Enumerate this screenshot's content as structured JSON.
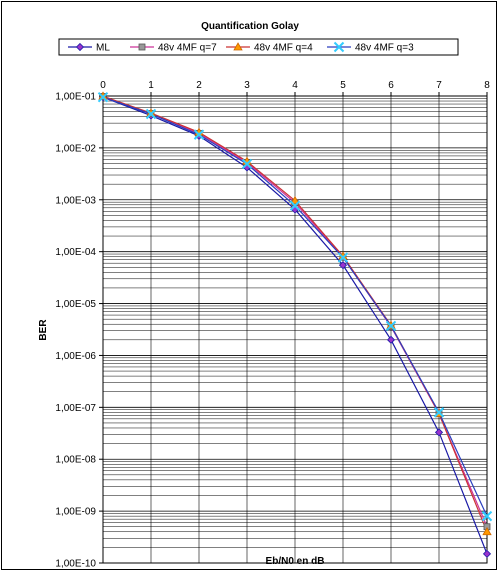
{
  "chart_data": {
    "type": "line",
    "title": "Quantification Golay",
    "xlabel": "Eb/N0 en dB",
    "ylabel": "BER",
    "x": [
      0,
      1,
      2,
      3,
      4,
      5,
      6,
      7,
      8
    ],
    "x_tick_labels": [
      "0",
      "1",
      "2",
      "3",
      "4",
      "5",
      "6",
      "7",
      "8"
    ],
    "xlim": [
      0,
      8
    ],
    "y_scale": "log",
    "ylim": [
      1e-10,
      0.1
    ],
    "y_tick_values": [
      0.1,
      0.01,
      0.001,
      0.0001,
      1e-05,
      1e-06,
      1e-07,
      1e-08,
      1e-09,
      1e-10
    ],
    "y_tick_labels": [
      "1,00E-01",
      "1,00E-02",
      "1,00E-03",
      "1,00E-04",
      "1,00E-05",
      "1,00E-06",
      "1,00E-07",
      "1,00E-08",
      "1,00E-09",
      "1,00E-10"
    ],
    "x_axis_position": "top",
    "grid": true,
    "legend_position": "top",
    "series": [
      {
        "name": "ML",
        "color": "#1a1aa6",
        "marker": "diamond",
        "marker_color": "#9933cc",
        "values": [
          0.095,
          0.042,
          0.017,
          0.0042,
          0.00065,
          5.5e-05,
          2e-06,
          3.3e-08,
          1.5e-10
        ]
      },
      {
        "name": "48v 4MF q=7",
        "color": "#cc3399",
        "marker": "square",
        "marker_color": "#999999",
        "values": [
          0.098,
          0.046,
          0.019,
          0.0052,
          0.00088,
          7.8e-05,
          3.6e-06,
          7.5e-08,
          5e-10
        ]
      },
      {
        "name": "48v 4MF q=4",
        "color": "#cc3333",
        "marker": "triangle",
        "marker_color": "#ff9900",
        "values": [
          0.099,
          0.047,
          0.02,
          0.0055,
          0.00096,
          8.2e-05,
          3.8e-06,
          7.6e-08,
          4e-10
        ]
      },
      {
        "name": "48v 4MF q=3",
        "color": "#2a3fbf",
        "marker": "x",
        "marker_color": "#33ccff",
        "values": [
          0.095,
          0.045,
          0.018,
          0.0049,
          0.00077,
          7.7e-05,
          3.7e-06,
          8e-08,
          8e-10
        ]
      }
    ]
  }
}
